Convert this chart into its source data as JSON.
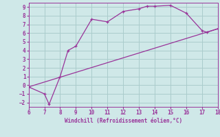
{
  "xlabel": "Windchill (Refroidissement éolien,°C)",
  "bg_color": "#cfe8e8",
  "grid_color": "#aacccc",
  "line_color": "#993399",
  "xlim": [
    6,
    18
  ],
  "ylim": [
    -2.5,
    9.5
  ],
  "xticks": [
    6,
    7,
    8,
    9,
    10,
    11,
    12,
    13,
    14,
    15,
    16,
    17,
    18
  ],
  "yticks": [
    -2,
    -1,
    0,
    1,
    2,
    3,
    4,
    5,
    6,
    7,
    8,
    9
  ],
  "curve1_x": [
    6,
    7,
    7.3,
    8,
    8.5,
    9,
    10,
    11,
    12,
    13,
    13.5,
    14,
    15,
    16,
    17,
    17.3,
    18
  ],
  "curve1_y": [
    -0.2,
    -1.0,
    -2.2,
    1.0,
    4.0,
    4.5,
    7.6,
    7.3,
    8.5,
    8.8,
    9.1,
    9.1,
    9.2,
    8.3,
    6.3,
    6.1,
    6.5
  ],
  "curve2_x": [
    6,
    18
  ],
  "curve2_y": [
    -0.2,
    6.5
  ],
  "marker": "+"
}
